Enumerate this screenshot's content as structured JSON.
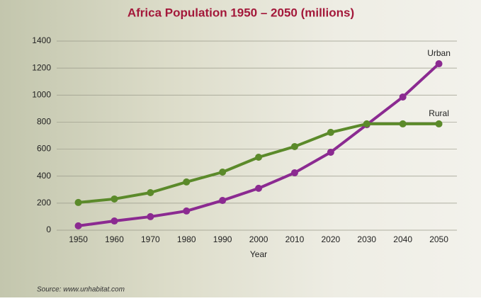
{
  "chart_data": {
    "type": "line",
    "title": "Africa Population 1950 – 2050 (millions)",
    "x_label": "Year",
    "source": "Source: www.unhabitat.com",
    "x": [
      1950,
      1960,
      1970,
      1980,
      1990,
      2000,
      2010,
      2020,
      2030,
      2040,
      2050
    ],
    "series": [
      {
        "name": "Urban",
        "color": "#8b2a91",
        "values": [
          32,
          68,
          100,
          142,
          220,
          310,
          425,
          577,
          781,
          986,
          1232
        ]
      },
      {
        "name": "Rural",
        "color": "#5b8a2a",
        "values": [
          205,
          231,
          278,
          357,
          430,
          540,
          619,
          724,
          787,
          787,
          787
        ]
      }
    ],
    "xlim": [
      1944,
      2055
    ],
    "xticks": [
      1950,
      1960,
      1970,
      1980,
      1990,
      2000,
      2010,
      2020,
      2030,
      2040,
      2050
    ],
    "ylim": [
      0,
      1400
    ],
    "yticks": [
      0,
      200,
      400,
      600,
      800,
      1000,
      1200,
      1400
    ],
    "grid": true
  }
}
